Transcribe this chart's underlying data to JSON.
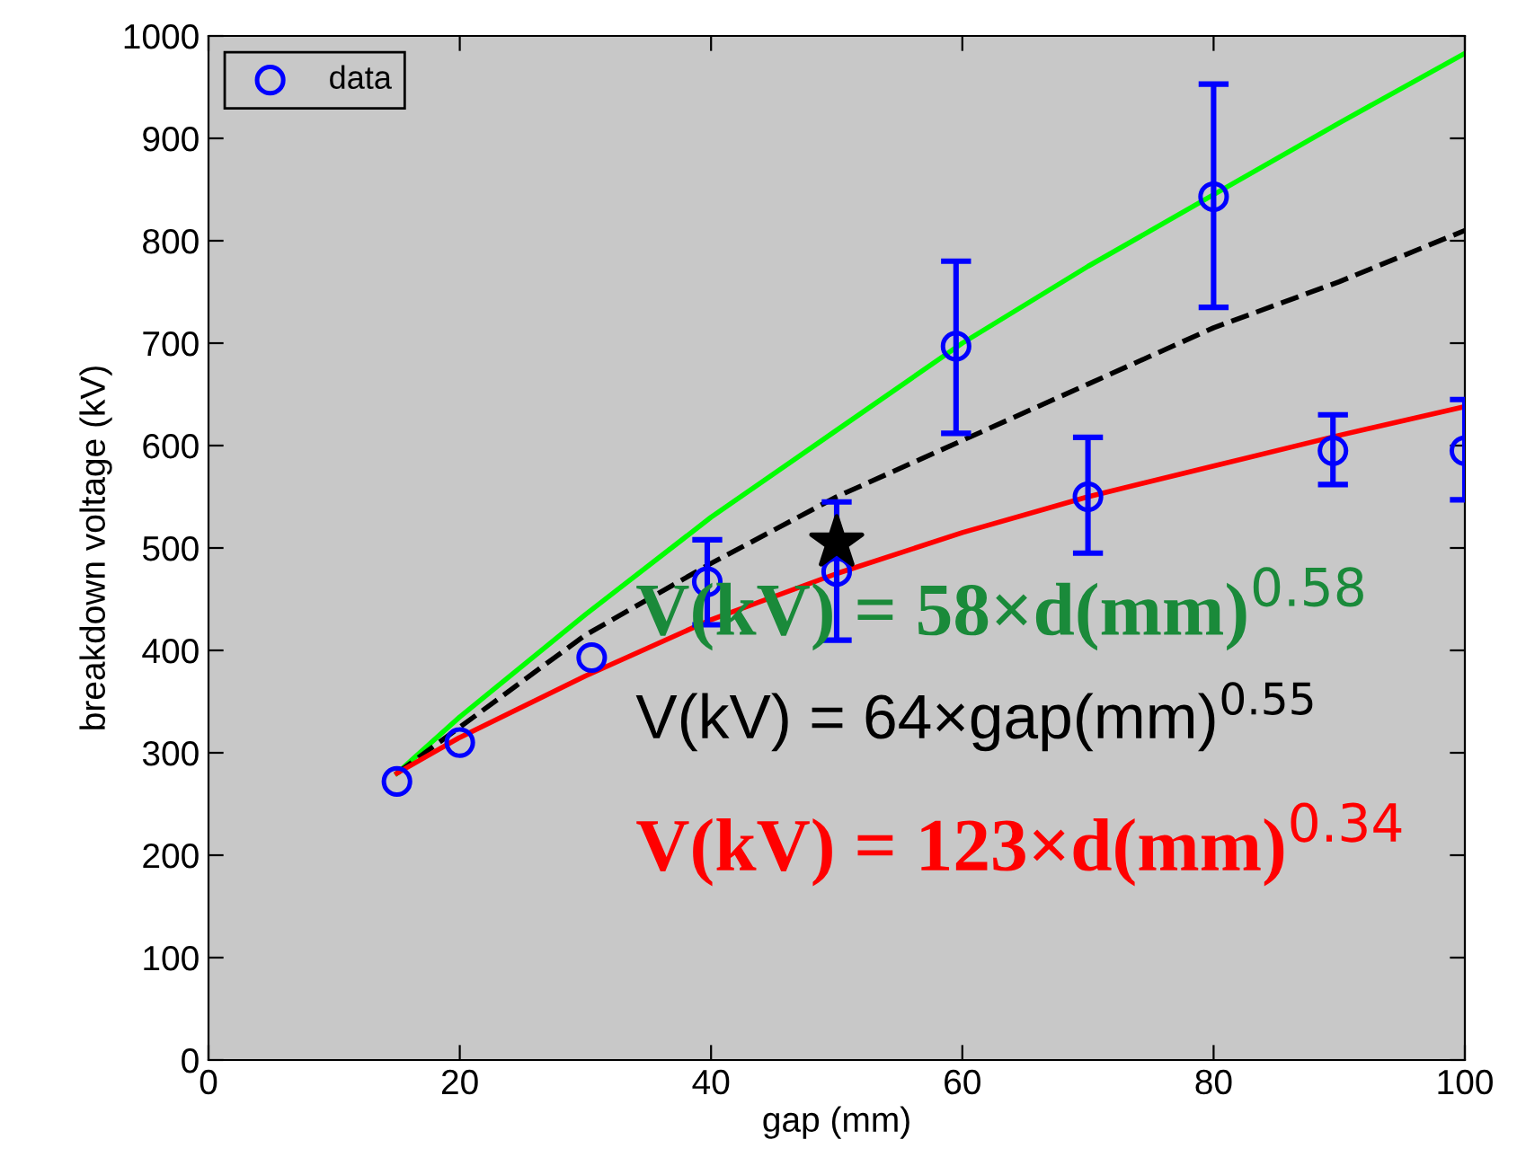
{
  "chart_data": {
    "type": "scatter",
    "xlabel": "gap (mm)",
    "ylabel": "breakdown voltage (kV)",
    "xlim": [
      0,
      100
    ],
    "ylim": [
      0,
      1000
    ],
    "xticks": [
      0,
      20,
      40,
      60,
      80,
      100
    ],
    "yticks": [
      0,
      100,
      200,
      300,
      400,
      500,
      600,
      700,
      800,
      900,
      1000
    ],
    "grid": false,
    "legend": "top left",
    "series": [
      {
        "type": "line",
        "color": "#00ff00",
        "line_style": "solid",
        "marker": "none",
        "x": [
          15,
          20,
          30,
          40,
          50,
          60,
          70,
          80,
          90,
          100
        ],
        "values": [
          280,
          335,
          435,
          530,
          615,
          700,
          775,
          845,
          915,
          983
        ]
      },
      {
        "type": "line",
        "color": "#000000",
        "line_style": "dashed",
        "marker": "none",
        "x": [
          15,
          20,
          30,
          40,
          50,
          60,
          70,
          80,
          90,
          100
        ],
        "values": [
          280,
          325,
          415,
          485,
          550,
          605,
          660,
          715,
          760,
          810
        ]
      },
      {
        "type": "line",
        "color": "#ff0000",
        "line_style": "solid",
        "marker": "none",
        "x": [
          15,
          20,
          30,
          40,
          50,
          60,
          70,
          80,
          90,
          100
        ],
        "values": [
          280,
          315,
          375,
          430,
          475,
          515,
          550,
          580,
          610,
          638
        ]
      },
      {
        "name": "data",
        "color": "#0000ff",
        "marker": "circle",
        "x": [
          15,
          20,
          30.5,
          39.7,
          50,
          59.5,
          70,
          80,
          89.5,
          100
        ],
        "values": [
          272,
          310,
          393,
          467,
          477,
          697,
          550,
          843,
          595,
          595
        ],
        "errors": [
          null,
          null,
          null,
          [
            425,
            508
          ],
          [
            410,
            545
          ],
          [
            612,
            780
          ],
          [
            495,
            608
          ],
          [
            735,
            953
          ],
          [
            562,
            630
          ],
          [
            547,
            645
          ]
        ]
      },
      {
        "color": "#000000",
        "marker": "star",
        "x": [
          50
        ],
        "values": [
          505
        ]
      }
    ],
    "annotations": [
      "V(kV) = 58×d(mm)$^{0.58}$",
      "V(kV) = 64×gap(mm)$^{0.55}$",
      "V(kV) = 123×d(mm)$^{0.34}$"
    ]
  }
}
